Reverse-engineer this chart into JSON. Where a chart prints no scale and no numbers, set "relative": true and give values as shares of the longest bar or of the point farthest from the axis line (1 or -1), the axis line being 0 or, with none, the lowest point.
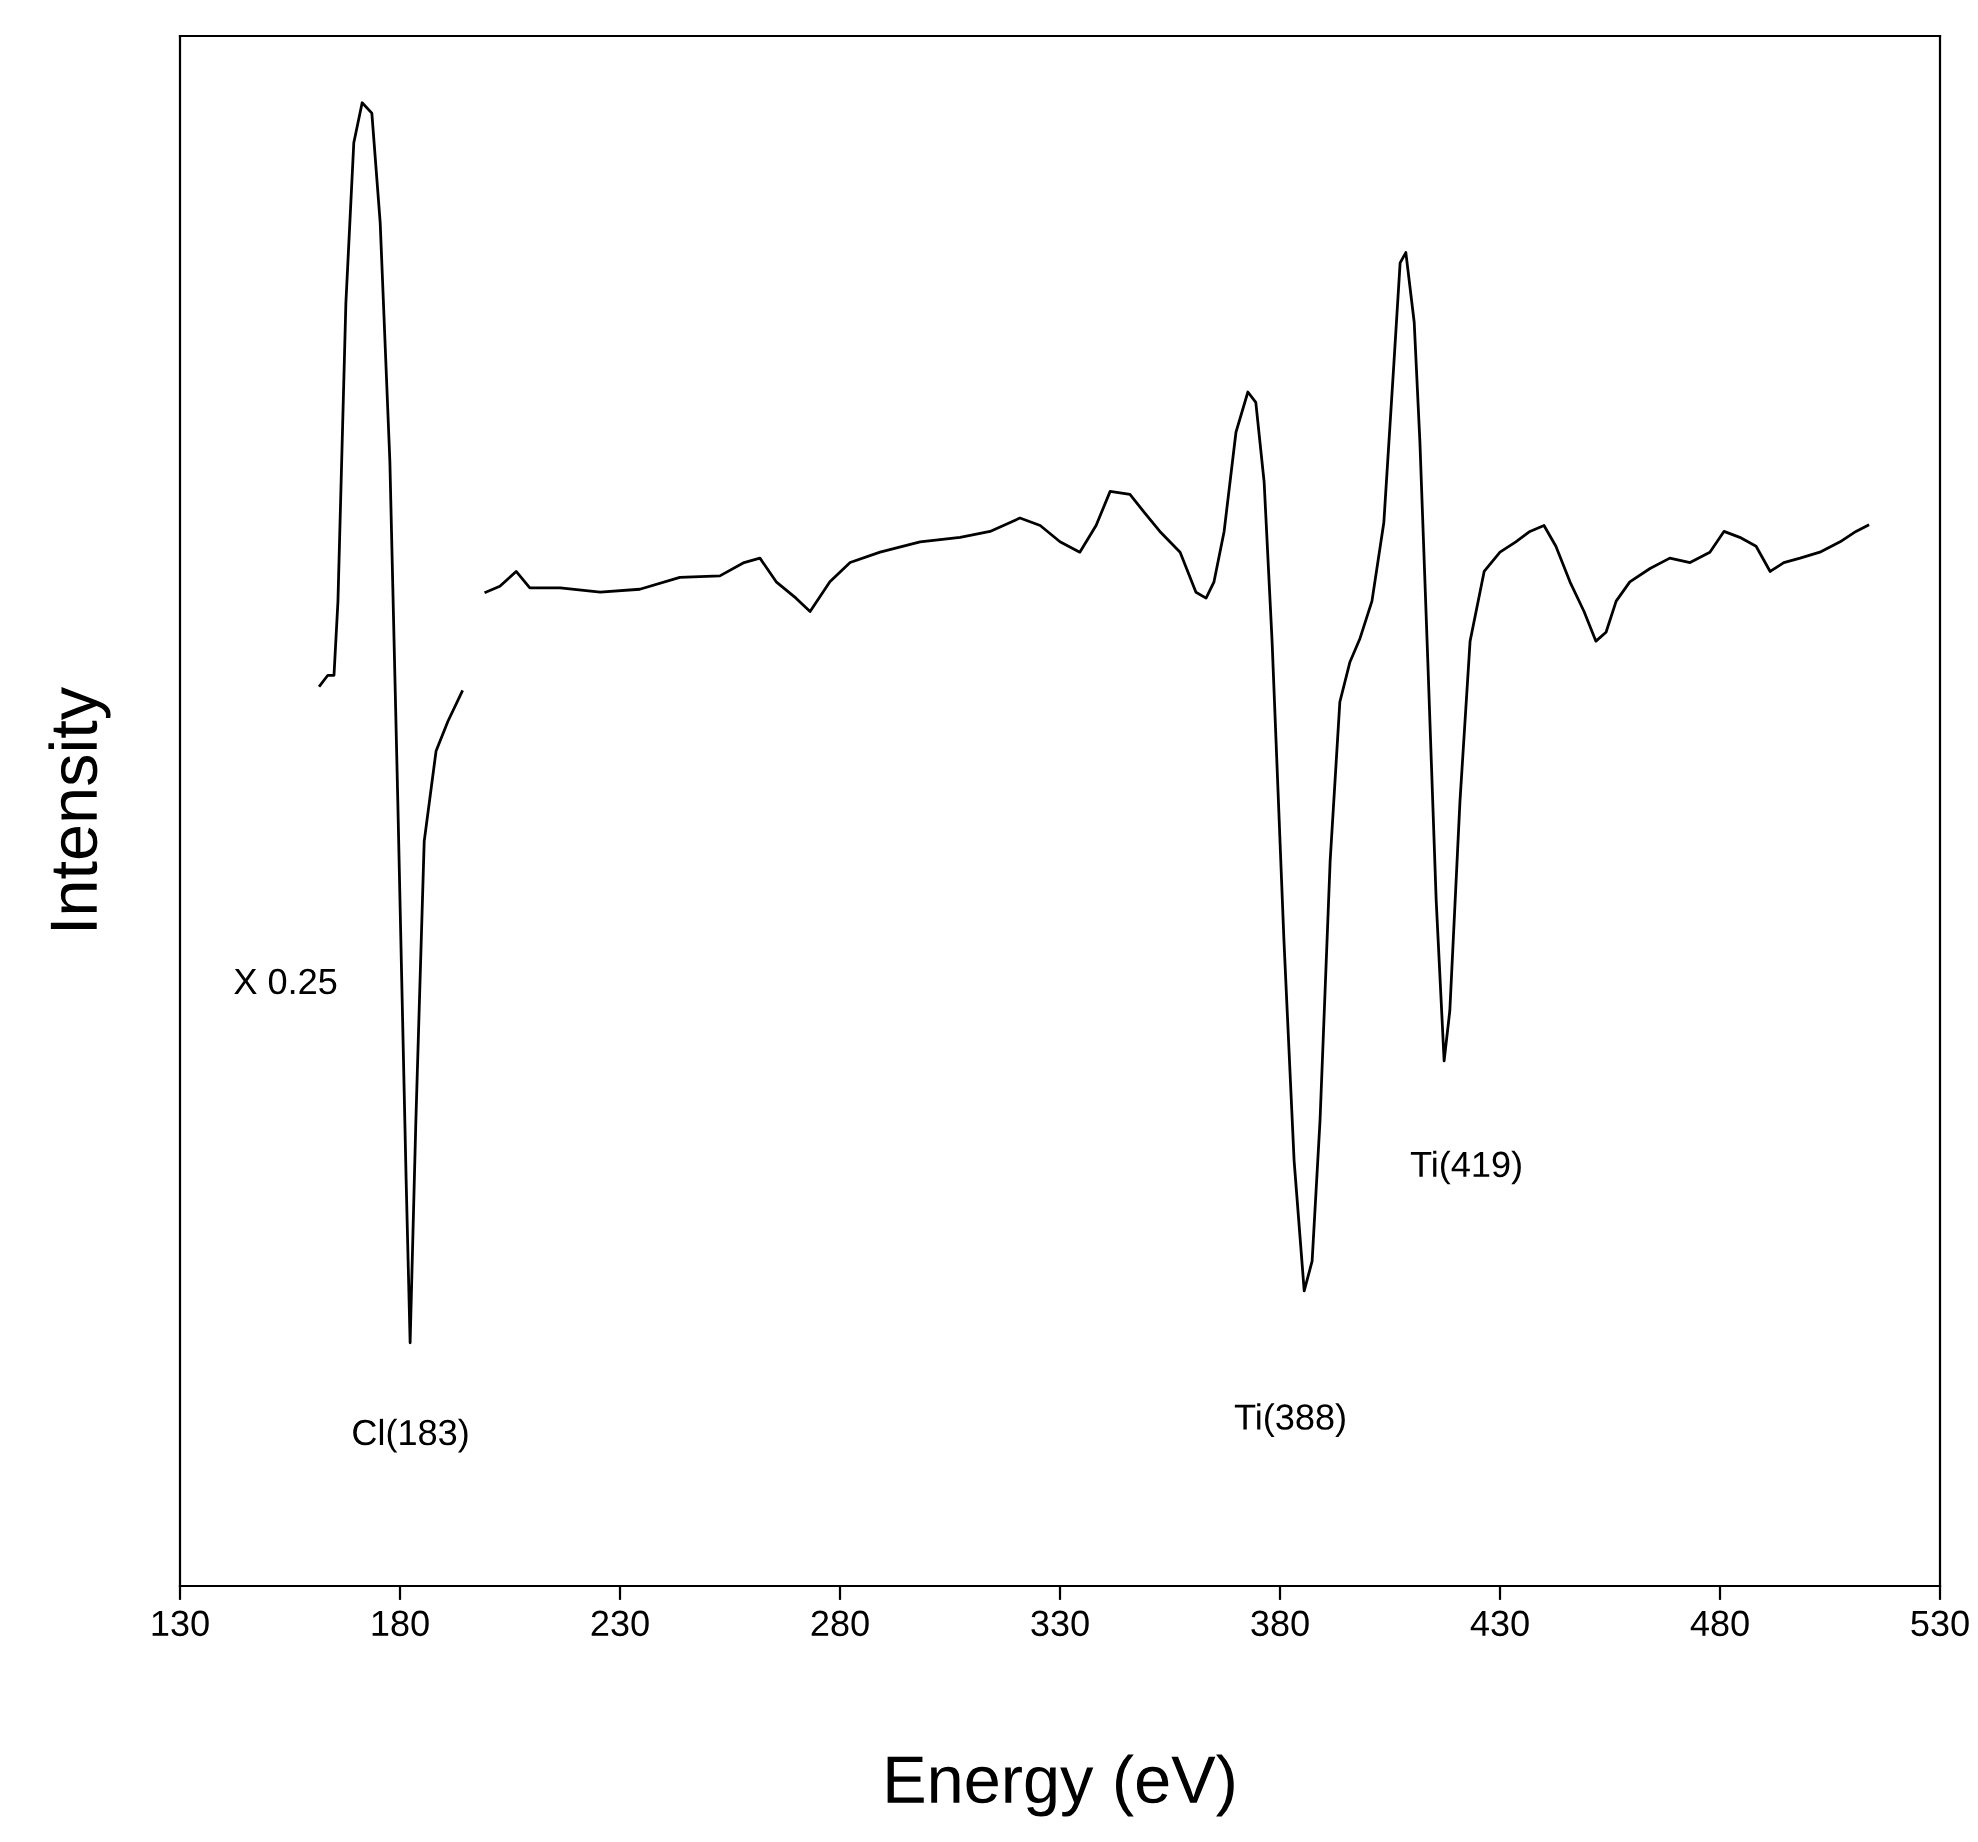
{
  "chart_data": {
    "type": "line",
    "relative": true,
    "xlabel": "Energy (eV)",
    "ylabel": "Intensity",
    "xlim": [
      130,
      530
    ],
    "xticks": [
      130,
      180,
      230,
      280,
      330,
      380,
      430,
      480,
      530
    ],
    "grid": false,
    "legend": false,
    "marker": "none",
    "line_style": "solid",
    "series": [
      {
        "color": "#000000",
        "x": [
          161.8,
          163.6,
          165,
          165.9,
          167.7,
          169.5,
          171.4,
          173.6,
          175.5,
          177.7,
          179.5,
          181.4,
          182.3,
          183.6,
          185.5,
          188.2,
          190.9,
          194.1
        ],
        "values": [
          0.607,
          0.614,
          0.614,
          0.664,
          0.865,
          0.973,
          1.0,
          0.993,
          0.919,
          0.758,
          0.529,
          0.273,
          0.164,
          0.313,
          0.502,
          0.563,
          0.583,
          0.603
        ]
      },
      {
        "color": "#000000",
        "x": [
          199.5,
          202.7,
          206.4,
          209.5,
          216.4,
          225.5,
          234.5,
          243.6,
          252.7,
          258.2,
          261.8,
          265.5,
          270,
          273.2,
          277.7,
          282.3,
          289.1,
          298.2,
          307.3,
          314.1,
          320.9,
          325.5,
          330,
          334.5,
          338.2,
          341.4,
          345.9,
          349.1,
          352.7,
          357.3,
          360.9,
          363.2,
          365,
          367.3,
          370,
          372.7,
          374.5,
          376.4,
          378.2,
          380.9,
          383.2,
          385.5,
          387.3,
          389.1,
          391.4,
          393.6,
          395.9,
          398.2,
          400.9,
          403.6,
          405.9,
          407.3,
          408.6,
          410.5,
          411.8,
          413.6,
          415.5,
          417.3,
          418.6,
          420.9,
          423.2,
          426.4,
          430,
          433.6,
          436.8,
          440,
          442.7,
          445.9,
          449.1,
          451.8,
          454.1,
          456.4,
          459.5,
          464.1,
          468.6,
          473.2,
          477.7,
          480.9,
          484.5,
          488.2,
          491.4,
          494.5,
          498.2,
          502.7,
          507.3,
          510.9,
          513.6
        ],
        "values": [
          0.67,
          0.674,
          0.684,
          0.673,
          0.673,
          0.67,
          0.672,
          0.68,
          0.681,
          0.69,
          0.693,
          0.677,
          0.666,
          0.657,
          0.677,
          0.69,
          0.697,
          0.704,
          0.707,
          0.711,
          0.72,
          0.715,
          0.704,
          0.697,
          0.715,
          0.738,
          0.736,
          0.724,
          0.711,
          0.697,
          0.67,
          0.666,
          0.677,
          0.711,
          0.778,
          0.805,
          0.798,
          0.744,
          0.637,
          0.435,
          0.287,
          0.199,
          0.219,
          0.314,
          0.489,
          0.596,
          0.623,
          0.639,
          0.664,
          0.717,
          0.825,
          0.892,
          0.899,
          0.852,
          0.771,
          0.623,
          0.462,
          0.354,
          0.388,
          0.529,
          0.637,
          0.684,
          0.697,
          0.704,
          0.711,
          0.715,
          0.701,
          0.677,
          0.657,
          0.637,
          0.643,
          0.664,
          0.677,
          0.686,
          0.693,
          0.69,
          0.697,
          0.711,
          0.707,
          0.701,
          0.684,
          0.69,
          0.693,
          0.697,
          0.704,
          0.711,
          0.715
        ]
      }
    ],
    "annotations": [
      "X 0.25",
      "Cl(183)",
      "Ti(388)",
      "Ti(419)"
    ]
  }
}
